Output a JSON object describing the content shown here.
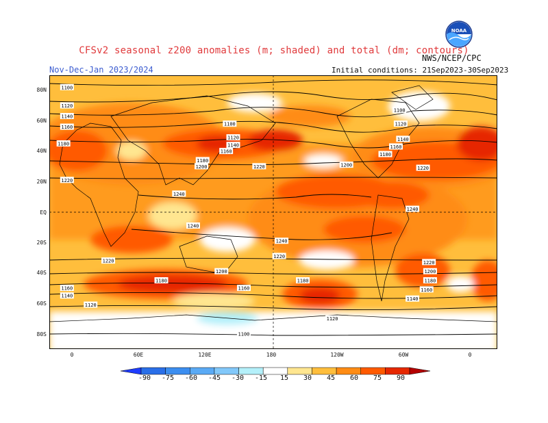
{
  "title": "CFSv2 seasonal z200 anomalies (m; shaded) and total (dm; contours)",
  "period": "Nov-Dec-Jan 2023/2024",
  "initial_conditions": "Initial conditions: 21Sep2023-30Sep2023",
  "agency": "NWS/NCEP/CPC",
  "logo_text": "NOAA",
  "lat_labels": [
    "80N",
    "60N",
    "40N",
    "20N",
    "EQ",
    "20S",
    "40S",
    "60S",
    "80S"
  ],
  "lon_labels": [
    "0",
    "60E",
    "120E",
    "180",
    "120W",
    "60W",
    "0"
  ],
  "colorbar": {
    "labels": [
      "-90",
      "-75",
      "-60",
      "-45",
      "-30",
      "-15",
      "15",
      "30",
      "45",
      "60",
      "75",
      "90"
    ],
    "colors": [
      "#1e3cff",
      "#2a6fe8",
      "#3c8ef0",
      "#5aaaf5",
      "#82c8fa",
      "#b4f0fa",
      "#ffffff",
      "#ffe690",
      "#ffbe3c",
      "#ff8c14",
      "#ff5a00",
      "#e62800",
      "#b40000"
    ]
  },
  "contour_labels": [
    {
      "text": "1100",
      "lat": 82,
      "lon": -5
    },
    {
      "text": "1120",
      "lat": 70,
      "lon": -5
    },
    {
      "text": "1140",
      "lat": 63,
      "lon": -5
    },
    {
      "text": "1160",
      "lat": 56,
      "lon": -5
    },
    {
      "text": "1180",
      "lat": 45,
      "lon": -8
    },
    {
      "text": "1220",
      "lat": 21,
      "lon": -5
    },
    {
      "text": "1100",
      "lat": 58,
      "lon": 133
    },
    {
      "text": "1120",
      "lat": 49,
      "lon": 136
    },
    {
      "text": "1140",
      "lat": 44,
      "lon": 136
    },
    {
      "text": "1160",
      "lat": 40,
      "lon": 130
    },
    {
      "text": "1180",
      "lat": 34,
      "lon": 110
    },
    {
      "text": "1200",
      "lat": 30,
      "lon": 109
    },
    {
      "text": "1220",
      "lat": 30,
      "lon": 158
    },
    {
      "text": "1240",
      "lat": 12,
      "lon": 90
    },
    {
      "text": "1240",
      "lat": -9,
      "lon": 102
    },
    {
      "text": "1240",
      "lat": -19,
      "lon": 177
    },
    {
      "text": "1220",
      "lat": -29,
      "lon": 175
    },
    {
      "text": "1220",
      "lat": -32,
      "lon": 30
    },
    {
      "text": "1200",
      "lat": -39,
      "lon": 126
    },
    {
      "text": "1180",
      "lat": -45,
      "lon": 75
    },
    {
      "text": "1180",
      "lat": -45,
      "lon": -165
    },
    {
      "text": "1160",
      "lat": -50,
      "lon": 145
    },
    {
      "text": "1160",
      "lat": -50,
      "lon": -5
    },
    {
      "text": "1140",
      "lat": -55,
      "lon": -5
    },
    {
      "text": "1120",
      "lat": -61,
      "lon": 15
    },
    {
      "text": "1120",
      "lat": -70,
      "lon": -140
    },
    {
      "text": "1100",
      "lat": -80,
      "lon": 145
    },
    {
      "text": "1100",
      "lat": 67,
      "lon": -83
    },
    {
      "text": "1120",
      "lat": 58,
      "lon": -82
    },
    {
      "text": "1140",
      "lat": 48,
      "lon": -80
    },
    {
      "text": "1160",
      "lat": 43,
      "lon": -86
    },
    {
      "text": "1180",
      "lat": 38,
      "lon": -95
    },
    {
      "text": "1200",
      "lat": 31,
      "lon": -128
    },
    {
      "text": "1220",
      "lat": 29,
      "lon": -63
    },
    {
      "text": "1240",
      "lat": 2,
      "lon": -72
    },
    {
      "text": "1220",
      "lat": -33,
      "lon": -58
    },
    {
      "text": "1200",
      "lat": -39,
      "lon": -57
    },
    {
      "text": "1180",
      "lat": -45,
      "lon": -57
    },
    {
      "text": "1160",
      "lat": -51,
      "lon": -60
    },
    {
      "text": "1140",
      "lat": -57,
      "lon": -72
    }
  ]
}
